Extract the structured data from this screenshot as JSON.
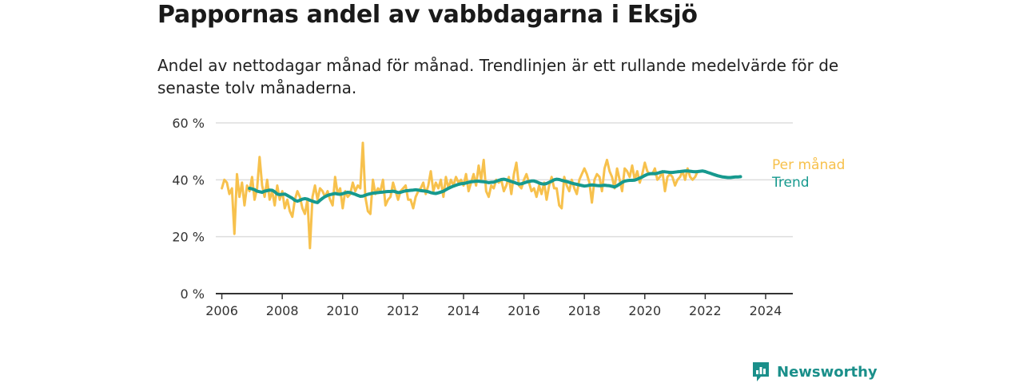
{
  "title": "Pappornas andel av vabbdagarna i Eksjö",
  "subtitle": "Andel av nettodagar månad för månad. Trendlinjen är ett rullande medelvärde för de senaste tolv månaderna.",
  "brand": "Newsworthy",
  "colors": {
    "monthly": "#f7c14d",
    "trend": "#16998e",
    "grid": "#dddddd",
    "axis": "#333333",
    "brand": "#1a8f8a"
  },
  "chart_data": {
    "type": "line",
    "x_unit": "year",
    "xlim": [
      2005.8,
      2024.9
    ],
    "ylim": [
      0,
      60
    ],
    "y_ticks": [
      0,
      20,
      40,
      60
    ],
    "y_tick_labels": [
      "0 %",
      "20 %",
      "40 %",
      "60 %"
    ],
    "x_ticks": [
      2006,
      2008,
      2010,
      2012,
      2014,
      2016,
      2018,
      2020,
      2022,
      2024
    ],
    "grid": true,
    "series": [
      {
        "name": "Per månad",
        "color": "#f7c14d",
        "x_start": 2006.0,
        "x_step": 0.08333,
        "values": [
          37,
          40,
          39,
          35,
          37,
          21,
          42,
          34,
          39,
          31,
          38,
          36,
          41,
          33,
          37,
          48,
          38,
          34,
          40,
          33,
          36,
          31,
          38,
          33,
          36,
          30,
          33,
          29,
          27,
          33,
          36,
          34,
          30,
          28,
          33,
          16,
          34,
          38,
          33,
          37,
          36,
          34,
          36,
          33,
          31,
          41,
          35,
          37,
          30,
          36,
          34,
          35,
          39,
          36,
          38,
          37,
          53,
          34,
          29,
          28,
          40,
          35,
          37,
          36,
          40,
          31,
          33,
          34,
          39,
          36,
          33,
          36,
          37,
          38,
          33,
          33,
          30,
          34,
          36,
          37,
          39,
          35,
          38,
          43,
          36,
          39,
          37,
          40,
          34,
          41,
          37,
          40,
          38,
          41,
          39,
          40,
          38,
          42,
          36,
          39,
          42,
          38,
          45,
          40,
          47,
          36,
          34,
          38,
          37,
          40,
          39,
          40,
          36,
          38,
          41,
          35,
          42,
          46,
          38,
          37,
          40,
          42,
          39,
          36,
          37,
          34,
          38,
          35,
          39,
          33,
          38,
          41,
          37,
          37,
          31,
          30,
          41,
          38,
          36,
          40,
          37,
          35,
          40,
          42,
          44,
          42,
          39,
          32,
          40,
          42,
          41,
          36,
          44,
          47,
          43,
          41,
          37,
          44,
          40,
          36,
          44,
          43,
          41,
          45,
          40,
          43,
          39,
          42,
          46,
          43,
          42,
          42,
          44,
          40,
          41,
          43,
          36,
          41,
          42,
          41,
          38,
          40,
          41,
          43,
          40,
          44,
          41,
          40,
          41,
          43
        ]
      },
      {
        "name": "Trend",
        "color": "#16998e",
        "x_start": 2006.917,
        "x_step": 0.08333,
        "values": [
          37,
          36.8,
          36.5,
          36,
          35.8,
          35.6,
          36,
          36.2,
          36.4,
          36.3,
          35.8,
          35,
          34.8,
          34.9,
          35,
          34.5,
          34,
          33.5,
          32.8,
          32.5,
          32.8,
          33.2,
          33.4,
          33.2,
          32.8,
          32.5,
          32.2,
          32,
          32.8,
          33.5,
          34.1,
          34.5,
          34.8,
          35,
          35.2,
          35,
          34.9,
          35.1,
          35.4,
          35.6,
          35.5,
          35.2,
          34.9,
          34.5,
          34.2,
          34.3,
          34.6,
          34.9,
          35.1,
          35.3,
          35.4,
          35.5,
          35.6,
          35.7,
          35.8,
          35.9,
          35.9,
          36,
          35.8,
          35.5,
          35.6,
          35.9,
          36.1,
          36.2,
          36.3,
          36.4,
          36.5,
          36.4,
          36.2,
          36.1,
          36,
          35.8,
          35.5,
          35.3,
          35.2,
          35.4,
          35.7,
          36,
          36.5,
          37,
          37.4,
          37.8,
          38.1,
          38.4,
          38.6,
          38.7,
          38.9,
          39.1,
          39.3,
          39.4,
          39.5,
          39.5,
          39.4,
          39.3,
          39.2,
          39,
          39.1,
          39.2,
          39.5,
          39.8,
          40.1,
          40.2,
          40,
          39.7,
          39.4,
          39.1,
          38.8,
          38.5,
          38.6,
          38.9,
          39.2,
          39.4,
          39.6,
          39.6,
          39.3,
          38.9,
          38.6,
          38.5,
          38.7,
          39.1,
          39.5,
          40,
          40.2,
          40.1,
          39.8,
          39.6,
          39.4,
          39.1,
          38.8,
          38.6,
          38.4,
          38.2,
          38,
          37.8,
          37.9,
          38.1,
          38.2,
          38.1,
          38,
          37.9,
          38,
          38.1,
          38,
          37.9,
          37.7,
          37.5,
          37.9,
          38.5,
          39.1,
          39.5,
          39.7,
          39.8,
          39.8,
          39.9,
          40.2,
          40.6,
          41,
          41.5,
          41.9,
          42.1,
          42.2,
          42.1,
          42.3,
          42.6,
          42.8,
          42.8,
          42.7,
          42.6,
          42.6,
          42.7,
          42.8,
          42.9,
          43,
          43.1,
          43.1,
          43,
          42.9,
          42.8,
          42.9,
          43,
          43.1,
          42.9,
          42.6,
          42.3,
          42,
          41.7,
          41.4,
          41.2,
          41,
          40.9,
          40.8,
          40.8,
          40.9,
          41,
          41,
          41.1
        ]
      }
    ]
  }
}
